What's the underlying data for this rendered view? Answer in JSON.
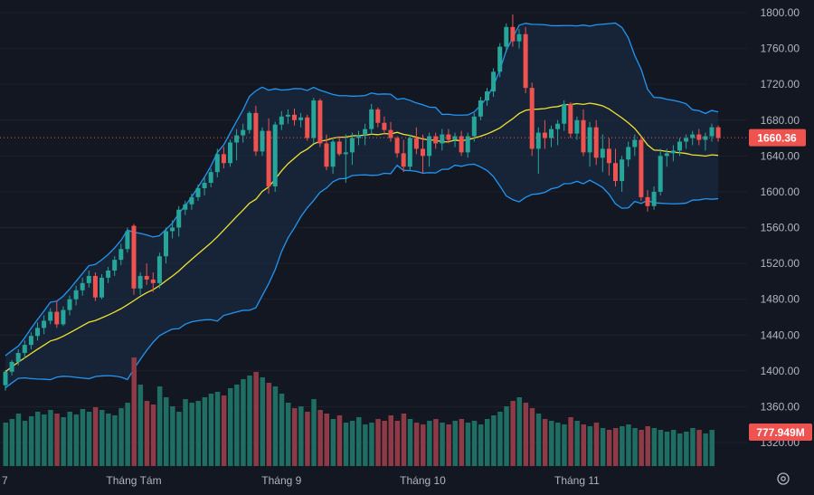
{
  "chart_data": {
    "type": "candlestick",
    "y_axis": {
      "ticks": [
        1320,
        1360,
        1400,
        1440,
        1480,
        1520,
        1560,
        1600,
        1640,
        1680,
        1720,
        1760,
        1800
      ],
      "tick_labels": [
        "1320.00",
        "1360.00",
        "1400.00",
        "1440.00",
        "1480.00",
        "1520.00",
        "1560.00",
        "1600.00",
        "1640.00",
        "1680.00",
        "1720.00",
        "1760.00",
        "1800.00"
      ],
      "range": [
        1290,
        1815
      ]
    },
    "x_axis": {
      "labels": [
        {
          "label": "7",
          "index": -1
        },
        {
          "label": "Tháng Tám",
          "index": 20
        },
        {
          "label": "Tháng 9",
          "index": 43
        },
        {
          "label": "Tháng 10",
          "index": 65
        },
        {
          "label": "Tháng 11",
          "index": 89
        }
      ]
    },
    "last_price": 1660.36,
    "last_price_label": "1660.36",
    "last_volume_label": "777.949M",
    "colors": {
      "up": "#26a69a",
      "down": "#ef5350",
      "up_volume": "#1f6e63",
      "down_volume": "#8e3b47",
      "bollinger": "#2962ff",
      "bollinger_line": "#2196f3",
      "middle_band": "#f0e130",
      "band_fill": "#1a2a3f",
      "grid": "#1e222d",
      "axis_text": "#b2b5be"
    },
    "candles": [
      [
        1384,
        1401,
        1378,
        1399
      ],
      [
        1399,
        1412,
        1395,
        1410
      ],
      [
        1410,
        1424,
        1406,
        1420
      ],
      [
        1420,
        1434,
        1414,
        1429
      ],
      [
        1429,
        1443,
        1424,
        1439
      ],
      [
        1439,
        1454,
        1434,
        1448
      ],
      [
        1448,
        1462,
        1441,
        1456
      ],
      [
        1456,
        1470,
        1452,
        1466
      ],
      [
        1466,
        1478,
        1448,
        1452
      ],
      [
        1452,
        1472,
        1450,
        1468
      ],
      [
        1468,
        1484,
        1462,
        1480
      ],
      [
        1480,
        1495,
        1473,
        1490
      ],
      [
        1490,
        1504,
        1484,
        1498
      ],
      [
        1498,
        1512,
        1493,
        1506
      ],
      [
        1506,
        1510,
        1478,
        1482
      ],
      [
        1482,
        1508,
        1480,
        1504
      ],
      [
        1504,
        1516,
        1498,
        1512
      ],
      [
        1512,
        1528,
        1506,
        1524
      ],
      [
        1524,
        1542,
        1518,
        1536
      ],
      [
        1536,
        1560,
        1532,
        1556
      ],
      [
        1562,
        1564,
        1485,
        1492
      ],
      [
        1492,
        1510,
        1485,
        1506
      ],
      [
        1506,
        1520,
        1496,
        1502
      ],
      [
        1502,
        1510,
        1488,
        1498
      ],
      [
        1498,
        1532,
        1492,
        1528
      ],
      [
        1528,
        1560,
        1520,
        1556
      ],
      [
        1556,
        1568,
        1548,
        1560
      ],
      [
        1560,
        1584,
        1550,
        1580
      ],
      [
        1580,
        1590,
        1574,
        1586
      ],
      [
        1586,
        1598,
        1580,
        1594
      ],
      [
        1594,
        1608,
        1590,
        1604
      ],
      [
        1604,
        1616,
        1596,
        1610
      ],
      [
        1610,
        1626,
        1605,
        1622
      ],
      [
        1622,
        1648,
        1616,
        1642
      ],
      [
        1642,
        1650,
        1626,
        1632
      ],
      [
        1632,
        1658,
        1628,
        1655
      ],
      [
        1655,
        1670,
        1635,
        1663
      ],
      [
        1663,
        1676,
        1655,
        1669
      ],
      [
        1669,
        1690,
        1665,
        1688
      ],
      [
        1688,
        1696,
        1640,
        1645
      ],
      [
        1645,
        1672,
        1640,
        1668
      ],
      [
        1668,
        1682,
        1598,
        1606
      ],
      [
        1606,
        1678,
        1600,
        1675
      ],
      [
        1675,
        1690,
        1669,
        1684
      ],
      [
        1684,
        1692,
        1676,
        1686
      ],
      [
        1686,
        1693,
        1674,
        1680
      ],
      [
        1680,
        1688,
        1672,
        1683
      ],
      [
        1683,
        1686,
        1657,
        1660
      ],
      [
        1660,
        1705,
        1654,
        1702
      ],
      [
        1702,
        1704,
        1650,
        1654
      ],
      [
        1654,
        1664,
        1624,
        1628
      ],
      [
        1628,
        1660,
        1620,
        1656
      ],
      [
        1656,
        1662,
        1640,
        1642
      ],
      [
        1642,
        1664,
        1610,
        1644
      ],
      [
        1644,
        1666,
        1630,
        1660
      ],
      [
        1660,
        1668,
        1652,
        1663
      ],
      [
        1663,
        1676,
        1652,
        1670
      ],
      [
        1670,
        1698,
        1664,
        1692
      ],
      [
        1692,
        1694,
        1672,
        1677
      ],
      [
        1677,
        1684,
        1664,
        1669
      ],
      [
        1669,
        1678,
        1656,
        1660
      ],
      [
        1660,
        1662,
        1638,
        1643
      ],
      [
        1643,
        1658,
        1622,
        1628
      ],
      [
        1628,
        1664,
        1624,
        1660
      ],
      [
        1660,
        1672,
        1642,
        1648
      ],
      [
        1648,
        1664,
        1620,
        1640
      ],
      [
        1640,
        1666,
        1628,
        1662
      ],
      [
        1662,
        1666,
        1648,
        1654
      ],
      [
        1654,
        1670,
        1646,
        1664
      ],
      [
        1664,
        1670,
        1654,
        1658
      ],
      [
        1658,
        1666,
        1650,
        1662
      ],
      [
        1662,
        1668,
        1640,
        1644
      ],
      [
        1644,
        1666,
        1638,
        1662
      ],
      [
        1662,
        1688,
        1656,
        1684
      ],
      [
        1684,
        1706,
        1680,
        1702
      ],
      [
        1702,
        1716,
        1696,
        1712
      ],
      [
        1712,
        1738,
        1706,
        1734
      ],
      [
        1734,
        1766,
        1728,
        1762
      ],
      [
        1762,
        1788,
        1756,
        1784
      ],
      [
        1784,
        1798,
        1762,
        1768
      ],
      [
        1768,
        1782,
        1760,
        1776
      ],
      [
        1776,
        1784,
        1710,
        1716
      ],
      [
        1716,
        1722,
        1640,
        1648
      ],
      [
        1648,
        1672,
        1620,
        1666
      ],
      [
        1666,
        1680,
        1648,
        1660
      ],
      [
        1660,
        1674,
        1650,
        1670
      ],
      [
        1670,
        1680,
        1652,
        1676
      ],
      [
        1676,
        1702,
        1668,
        1698
      ],
      [
        1698,
        1700,
        1660,
        1665
      ],
      [
        1665,
        1684,
        1658,
        1680
      ],
      [
        1680,
        1692,
        1640,
        1644
      ],
      [
        1644,
        1678,
        1628,
        1672
      ],
      [
        1672,
        1680,
        1630,
        1638
      ],
      [
        1638,
        1664,
        1622,
        1648
      ],
      [
        1648,
        1660,
        1618,
        1632
      ],
      [
        1632,
        1648,
        1606,
        1612
      ],
      [
        1612,
        1640,
        1600,
        1636
      ],
      [
        1636,
        1656,
        1628,
        1650
      ],
      [
        1650,
        1664,
        1640,
        1658
      ],
      [
        1658,
        1662,
        1590,
        1594
      ],
      [
        1594,
        1602,
        1578,
        1584
      ],
      [
        1584,
        1606,
        1580,
        1600
      ],
      [
        1600,
        1648,
        1596,
        1640
      ],
      [
        1640,
        1648,
        1628,
        1643
      ],
      [
        1643,
        1652,
        1634,
        1646
      ],
      [
        1646,
        1660,
        1640,
        1656
      ],
      [
        1656,
        1664,
        1648,
        1660
      ],
      [
        1660,
        1668,
        1652,
        1664
      ],
      [
        1664,
        1670,
        1652,
        1658
      ],
      [
        1658,
        1666,
        1646,
        1662
      ],
      [
        1662,
        1676,
        1656,
        1672
      ],
      [
        1672,
        1674,
        1656,
        1660
      ]
    ],
    "volume_heights": [
      48,
      52,
      58,
      50,
      55,
      60,
      57,
      62,
      58,
      54,
      60,
      57,
      63,
      60,
      65,
      62,
      58,
      56,
      64,
      70,
      120,
      90,
      72,
      68,
      88,
      76,
      66,
      60,
      74,
      70,
      72,
      76,
      80,
      82,
      78,
      86,
      90,
      96,
      100,
      104,
      98,
      92,
      88,
      80,
      70,
      64,
      66,
      60,
      74,
      62,
      58,
      52,
      56,
      48,
      50,
      54,
      46,
      48,
      52,
      50,
      56,
      50,
      58,
      52,
      48,
      46,
      50,
      52,
      48,
      46,
      50,
      52,
      48,
      50,
      46,
      52,
      56,
      60,
      66,
      72,
      76,
      70,
      64,
      58,
      52,
      50,
      48,
      46,
      54,
      50,
      46,
      44,
      48,
      42,
      40,
      42,
      44,
      46,
      42,
      40,
      44,
      42,
      40,
      38,
      40,
      36,
      38,
      42,
      40,
      36,
      40
    ]
  }
}
